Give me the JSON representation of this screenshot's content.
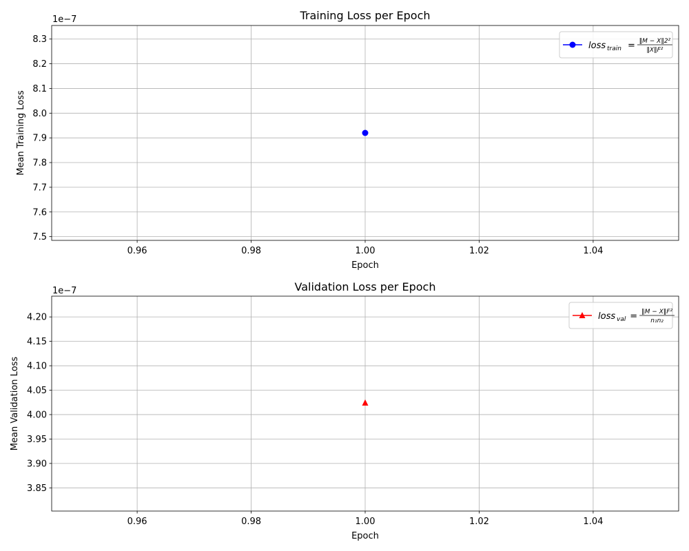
{
  "chart_data": [
    {
      "type": "line",
      "title": "Training Loss per Epoch",
      "xlabel": "Epoch",
      "ylabel": "Mean Training Loss",
      "x_ticks": [
        "0.96",
        "0.98",
        "1.00",
        "1.02",
        "1.04"
      ],
      "x_tick_values": [
        0.96,
        0.98,
        1.0,
        1.02,
        1.04
      ],
      "y_ticks": [
        "7.5",
        "7.6",
        "7.7",
        "7.8",
        "7.9",
        "8.0",
        "8.1",
        "8.2",
        "8.3"
      ],
      "y_tick_values": [
        7.5,
        7.6,
        7.7,
        7.8,
        7.9,
        8.0,
        8.1,
        8.2,
        8.3
      ],
      "y_offset_text": "1e−7",
      "xlim": [
        0.945,
        1.055
      ],
      "ylim": [
        7.485,
        8.355
      ],
      "grid": true,
      "legend_position": "top-right",
      "series": [
        {
          "legend_main": "loss",
          "legend_sub": "train",
          "legend_num": "‖M − X‖2²",
          "legend_den": "‖X‖F²",
          "color": "#0000ff",
          "marker": "circle",
          "x": [
            1.0
          ],
          "y": [
            7.92
          ]
        }
      ]
    },
    {
      "type": "line",
      "title": "Validation Loss per Epoch",
      "xlabel": "Epoch",
      "ylabel": "Mean Validation Loss",
      "x_ticks": [
        "0.96",
        "0.98",
        "1.00",
        "1.02",
        "1.04"
      ],
      "x_tick_values": [
        0.96,
        0.98,
        1.0,
        1.02,
        1.04
      ],
      "y_ticks": [
        "3.85",
        "3.90",
        "3.95",
        "4.00",
        "4.05",
        "4.10",
        "4.15",
        "4.20"
      ],
      "y_tick_values": [
        3.85,
        3.9,
        3.95,
        4.0,
        4.05,
        4.1,
        4.15,
        4.2
      ],
      "y_offset_text": "1e−7",
      "xlim": [
        0.945,
        1.055
      ],
      "ylim": [
        3.8025,
        4.2425
      ],
      "grid": true,
      "legend_position": "top-right",
      "series": [
        {
          "legend_main": "loss",
          "legend_sub": "val",
          "legend_num": "‖M − X‖F²",
          "legend_den": "n₁n₂",
          "color": "#ff0000",
          "marker": "triangle",
          "x": [
            1.0
          ],
          "y": [
            4.024
          ]
        }
      ]
    }
  ]
}
